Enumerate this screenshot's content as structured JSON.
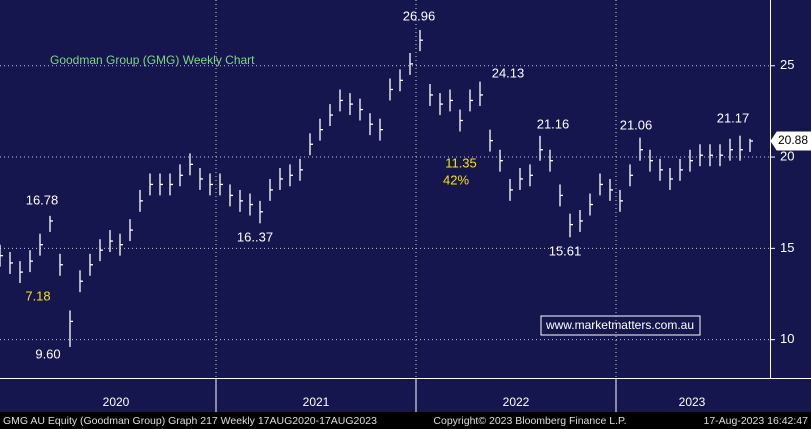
{
  "chart_data": {
    "type": "ohlc",
    "title": "Goodman Group (GMG) Weekly Chart",
    "watermark": "www.marketmatters.com.au",
    "footer_left": "GMG AU Equity (Goodman Group) Graph 217  Weekly 17AUG2020-17AUG2023",
    "footer_center": "Copyright© 2023 Bloomberg Finance L.P.",
    "footer_right": "17-Aug-2023 16:42:47",
    "bar_color": "#ffffff",
    "grid": true,
    "x": [
      2019.92,
      2019.97,
      2020.02,
      2020.07,
      2020.12,
      2020.17,
      2020.22,
      2020.27,
      2020.32,
      2020.37,
      2020.42,
      2020.47,
      2020.52,
      2020.57,
      2020.62,
      2020.67,
      2020.72,
      2020.77,
      2020.82,
      2020.87,
      2020.92,
      2020.97,
      2021.02,
      2021.07,
      2021.12,
      2021.17,
      2021.22,
      2021.27,
      2021.32,
      2021.37,
      2021.42,
      2021.47,
      2021.52,
      2021.57,
      2021.62,
      2021.67,
      2021.72,
      2021.77,
      2021.82,
      2021.87,
      2021.92,
      2021.97,
      2022.02,
      2022.07,
      2022.12,
      2022.17,
      2022.22,
      2022.27,
      2022.32,
      2022.37,
      2022.42,
      2022.47,
      2022.52,
      2022.57,
      2022.62,
      2022.67,
      2022.72,
      2022.77,
      2022.82,
      2022.87,
      2022.92,
      2022.97,
      2023.02,
      2023.07,
      2023.12,
      2023.17,
      2023.22,
      2023.27,
      2023.32,
      2023.37,
      2023.42,
      2023.47,
      2023.52,
      2023.57,
      2023.62,
      2023.67
    ],
    "high": [
      15.2,
      14.8,
      14.3,
      14.9,
      15.8,
      16.78,
      14.7,
      11.6,
      13.8,
      14.7,
      15.5,
      16.0,
      15.8,
      16.6,
      18.2,
      19.1,
      19.1,
      19.1,
      19.6,
      20.2,
      19.4,
      19.1,
      19.1,
      18.5,
      18.2,
      18.0,
      17.6,
      18.8,
      19.4,
      19.6,
      19.9,
      21.3,
      22.1,
      22.9,
      23.7,
      23.5,
      23.2,
      22.4,
      22.1,
      24.3,
      24.8,
      25.7,
      26.96,
      24.0,
      23.5,
      23.7,
      22.6,
      23.7,
      24.13,
      21.5,
      20.4,
      18.8,
      19.4,
      19.6,
      21.16,
      20.4,
      18.5,
      16.9,
      17.1,
      18.0,
      19.1,
      18.8,
      18.2,
      19.6,
      21.06,
      20.4,
      19.9,
      19.4,
      19.9,
      20.4,
      20.7,
      20.7,
      20.7,
      21.0,
      21.17,
      21.0
    ],
    "low": [
      14.0,
      13.6,
      13.1,
      13.7,
      14.6,
      15.9,
      13.5,
      9.6,
      12.6,
      13.5,
      14.3,
      14.8,
      14.6,
      15.4,
      17.0,
      17.9,
      17.9,
      17.9,
      18.4,
      19.0,
      18.2,
      17.9,
      17.9,
      17.3,
      17.0,
      16.8,
      16.37,
      17.6,
      18.2,
      18.4,
      18.7,
      20.1,
      20.9,
      21.7,
      22.5,
      22.3,
      22.0,
      21.2,
      20.9,
      23.1,
      23.6,
      24.5,
      25.8,
      22.8,
      22.3,
      22.5,
      21.4,
      22.5,
      22.8,
      20.3,
      19.2,
      17.6,
      18.2,
      18.4,
      19.8,
      19.2,
      17.3,
      15.61,
      15.9,
      16.8,
      17.9,
      17.6,
      17.0,
      18.4,
      19.8,
      19.2,
      18.7,
      18.2,
      18.7,
      19.2,
      19.5,
      19.5,
      19.5,
      19.8,
      19.8,
      20.28
    ],
    "close": [
      14.6,
      14.2,
      13.7,
      14.3,
      15.2,
      16.5,
      14.1,
      11.0,
      13.2,
      14.1,
      14.9,
      15.4,
      15.2,
      16.0,
      17.6,
      18.5,
      18.5,
      18.5,
      19.0,
      19.6,
      18.8,
      18.5,
      18.5,
      17.9,
      17.6,
      17.4,
      17.0,
      18.2,
      18.8,
      19.0,
      19.3,
      20.7,
      21.5,
      22.3,
      23.1,
      22.9,
      22.6,
      21.8,
      21.5,
      23.7,
      24.2,
      25.1,
      26.4,
      23.4,
      22.9,
      23.1,
      22.0,
      23.1,
      23.4,
      20.9,
      19.8,
      18.2,
      18.8,
      19.0,
      20.4,
      19.8,
      17.9,
      16.3,
      16.5,
      17.4,
      18.5,
      18.2,
      17.6,
      19.0,
      20.4,
      19.8,
      19.3,
      18.8,
      19.3,
      19.8,
      20.1,
      20.1,
      20.1,
      20.4,
      20.4,
      20.88
    ],
    "last_value": 20.88,
    "xlim": [
      2019.92,
      2023.77
    ],
    "xticks": [
      {
        "value": 2020.5,
        "label": "2020"
      },
      {
        "value": 2021.5,
        "label": "2021"
      },
      {
        "value": 2022.5,
        "label": "2022"
      },
      {
        "value": 2023.38,
        "label": "2023"
      }
    ],
    "year_boundaries": [
      2021,
      2022,
      2023
    ],
    "ylim": [
      7.9,
      28.6
    ],
    "yticks": [
      10,
      15,
      20,
      25
    ],
    "annotations": [
      {
        "text": "26.96",
        "color": "#ffffff"
      },
      {
        "text": "24.13",
        "color": "#ffffff"
      },
      {
        "text": "21.16",
        "color": "#ffffff"
      },
      {
        "text": "21.06",
        "color": "#ffffff"
      },
      {
        "text": "21.17",
        "color": "#ffffff"
      },
      {
        "text": "16.78",
        "color": "#ffffff"
      },
      {
        "text": "7.18",
        "color": "#f5e500"
      },
      {
        "text": "9.60",
        "color": "#ffffff"
      },
      {
        "text": "16..37",
        "color": "#ffffff"
      },
      {
        "text": "15.61",
        "color": "#ffffff"
      },
      {
        "text": "11.35",
        "color": "#f5e500"
      },
      {
        "text": "42%",
        "color": "#f5e500"
      }
    ]
  }
}
